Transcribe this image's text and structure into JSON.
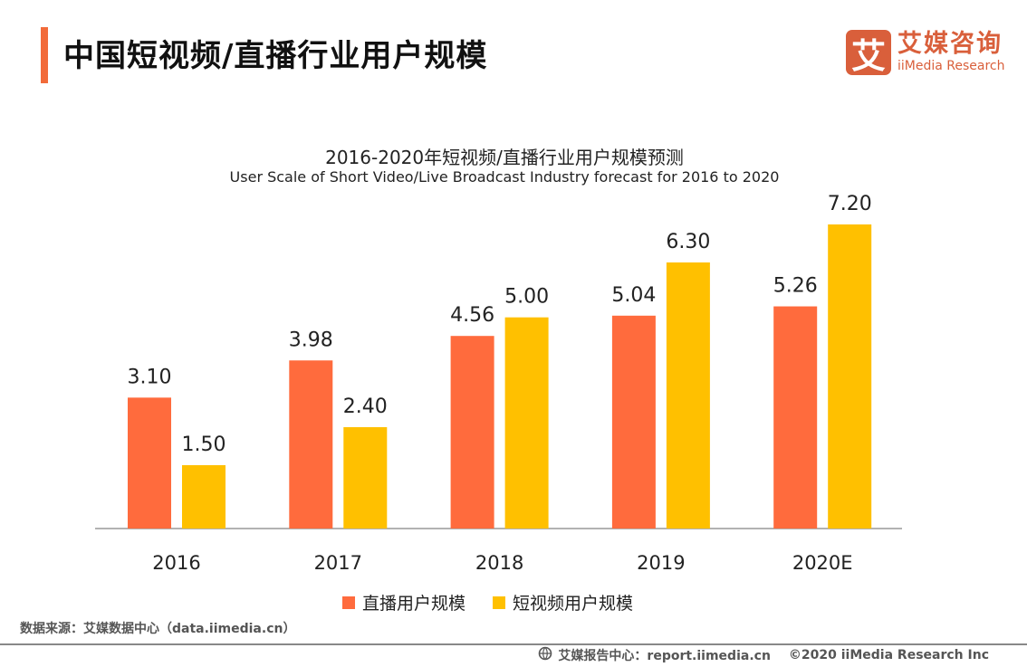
{
  "header": {
    "title": "中国短视频/直播行业用户规模"
  },
  "logo": {
    "glyph": "艾",
    "cn": "艾媒咨询",
    "en": "iiMedia Research",
    "color": "#d95f3b"
  },
  "source": "数据来源：艾媒数据中心（data.iimedia.cn）",
  "footer": {
    "icon": "globe-icon",
    "report": "艾媒报告中心：report.iimedia.cn",
    "copyright": "©2020  iiMedia Research  Inc"
  },
  "chart_data": {
    "type": "bar",
    "title": "2016-2020年短视频/直播行业用户规模预测",
    "subtitle": "User Scale of Short Video/Live Broadcast Industry  forecast for 2016 to 2020",
    "categories": [
      "2016",
      "2017",
      "2018",
      "2019",
      "2020E"
    ],
    "series": [
      {
        "name": "直播用户规模",
        "color": "#ff6b3d",
        "values": [
          3.1,
          3.98,
          4.56,
          5.04,
          5.26
        ],
        "labels": [
          "3.10",
          "3.98",
          "4.56",
          "5.04",
          "5.26"
        ]
      },
      {
        "name": "短视频用户规模",
        "color": "#ffc000",
        "values": [
          1.5,
          2.4,
          5.0,
          6.3,
          7.2
        ],
        "labels": [
          "1.50",
          "2.40",
          "5.00",
          "6.30",
          "7.20"
        ]
      }
    ],
    "ylim": [
      0,
      7.2
    ],
    "grid": false,
    "legend": "bottom"
  }
}
